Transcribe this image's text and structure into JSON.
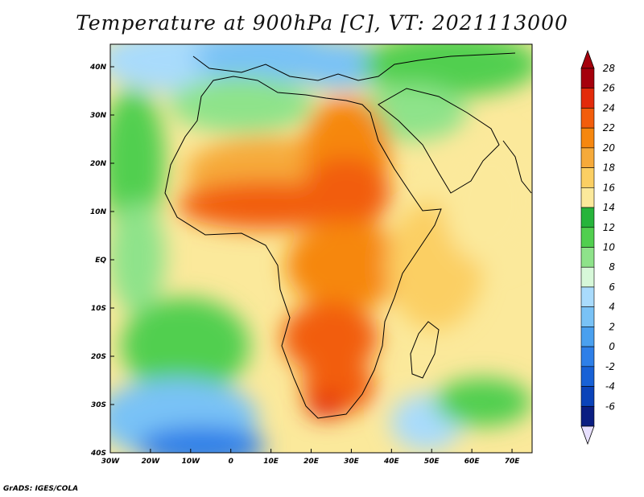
{
  "title": "Temperature at 900hPa [C], VT: 2021113000",
  "credit": "GrADS: IGES/COLA",
  "map": {
    "lon_labels": [
      "30W",
      "20W",
      "10W",
      "0",
      "10E",
      "20E",
      "30E",
      "40E",
      "50E",
      "60E",
      "70E"
    ],
    "lat_labels": [
      "40N",
      "30N",
      "20N",
      "10N",
      "EQ",
      "10S",
      "20S",
      "30S",
      "40S"
    ]
  },
  "colorbar": {
    "labels": [
      "28",
      "26",
      "24",
      "22",
      "20",
      "18",
      "16",
      "14",
      "12",
      "10",
      "8",
      "6",
      "4",
      "2",
      "0",
      "-2",
      "-4",
      "-6"
    ],
    "colors": [
      "#a5000c",
      "#e32b0b",
      "#f25d0c",
      "#f6870f",
      "#f6aa3a",
      "#fbcf63",
      "#fbe99b",
      "#26b43b",
      "#51cf4f",
      "#8ee38a",
      "#d7f8d9",
      "#a9dbfc",
      "#79c2f6",
      "#4aa0ef",
      "#2e7fe8",
      "#1861d6",
      "#0b43b9",
      "#0b1e82"
    ],
    "under_color": "#e8e0ff"
  }
}
